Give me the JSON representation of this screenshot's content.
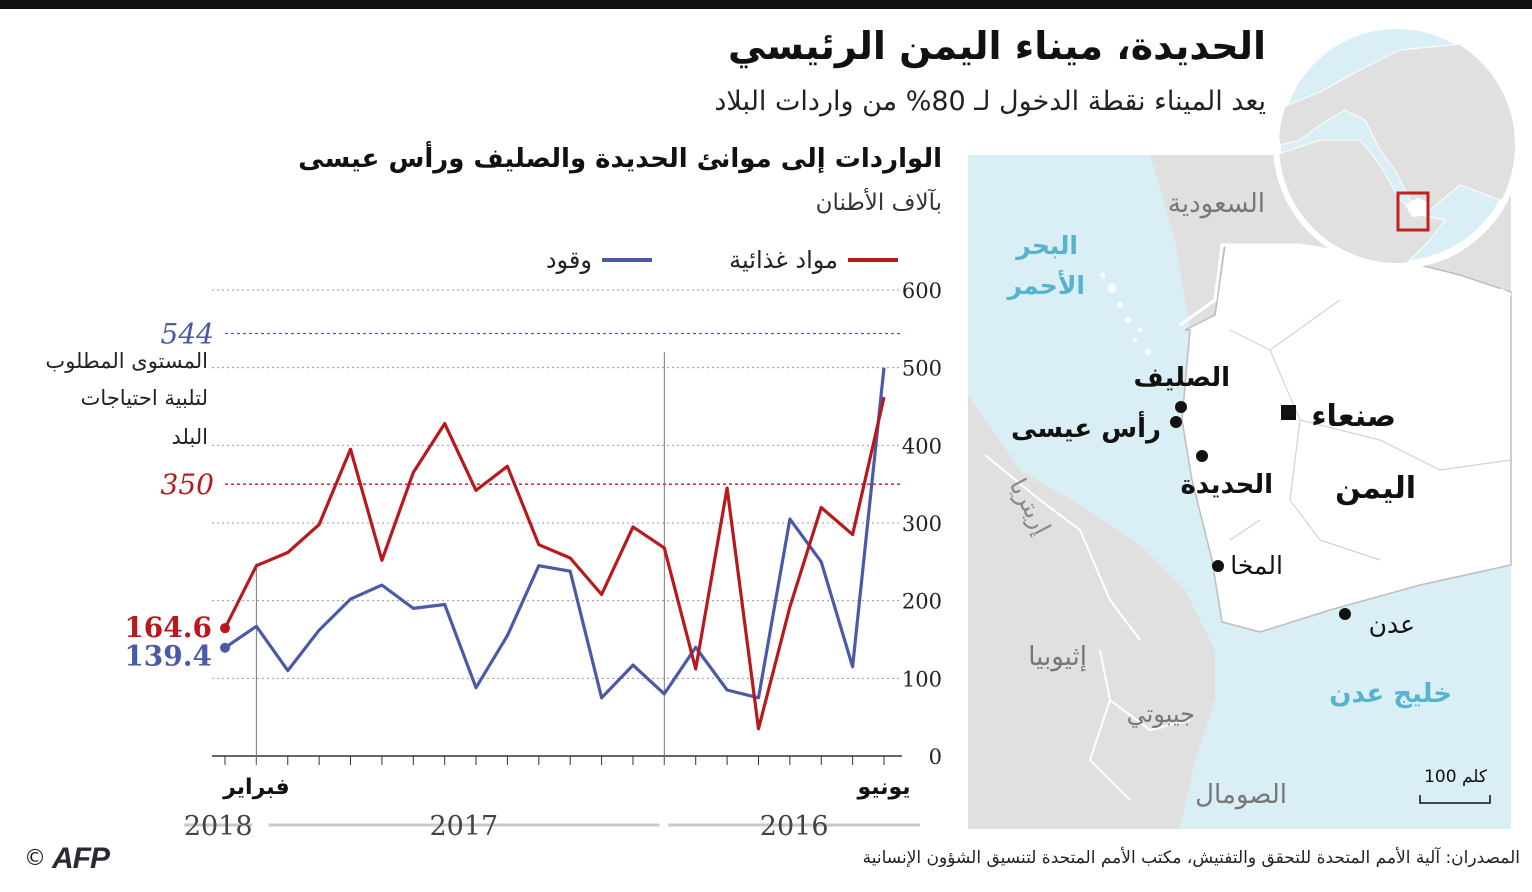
{
  "header": {
    "title": "الحديدة، ميناء اليمن الرئيسي",
    "subtitle": "يعد الميناء نقطة الدخول لـ 80% من واردات البلاد"
  },
  "chart_data": {
    "type": "line",
    "title": "الواردات إلى موانئ الحديدة والصليف ورأس عيسى",
    "unit_label": "بآلاف الأطنان",
    "ylim": [
      0,
      600
    ],
    "yticks": [
      0,
      100,
      200,
      300,
      400,
      500,
      600
    ],
    "ytick_labels": [
      "0",
      "100",
      "200",
      "300",
      "400",
      "500",
      "600"
    ],
    "x_direction": "right-to-left",
    "series": [
      {
        "name": "مواد غذائية",
        "color": "#b8191c",
        "values": [
          462,
          285,
          320,
          192,
          35,
          345,
          112,
          268,
          295,
          208,
          255,
          272,
          373,
          342,
          428,
          365,
          252,
          395,
          298,
          262,
          245,
          164.6
        ]
      },
      {
        "name": "وقود",
        "color": "#4a5aa8",
        "values": [
          500,
          115,
          250,
          305,
          75,
          85,
          140,
          80,
          117,
          75,
          238,
          245,
          155,
          88,
          195,
          190,
          220,
          202,
          162,
          110,
          167,
          139.4
        ]
      }
    ],
    "reference_lines": [
      {
        "value": 544,
        "label": "544",
        "color": "#4a5aa8",
        "note": "المستوى المطلوب لتلبية احتياجات البلد"
      },
      {
        "value": 350,
        "label": "350",
        "color": "#b8191c"
      }
    ],
    "end_labels": {
      "food": "164.6",
      "fuel": "139.4"
    },
    "x_labels": {
      "start": "يونيو",
      "feb": "فبراير"
    },
    "years": [
      "2016",
      "2017",
      "2018"
    ],
    "legend": {
      "food": "مواد غذائية",
      "fuel": "وقود"
    },
    "annotation_lines": [
      "المستوى المطلوب",
      "لتلبية احتياجات",
      "البلد"
    ]
  },
  "map": {
    "labels": {
      "saudi": "السعودية",
      "red_sea_1": "البحر",
      "red_sea_2": "الأحمر",
      "salif": "الصليف",
      "ras_isa": "رأس عيسى",
      "sanaa": "صنعاء",
      "hodeidah": "الحديدة",
      "yemen": "اليمن",
      "eritrea": "إريتريا",
      "mocha": "المخا",
      "aden": "عدن",
      "ethiopia": "إثيوبيا",
      "gulf_aden": "خليج عدن",
      "djibouti": "جيبوتي",
      "somalia": "الصومال",
      "scale": "100 كلم"
    },
    "colors": {
      "sea": "#d9eef5",
      "land": "#e0e0e0",
      "highlight": "#ffffff",
      "locator": "#c0201e"
    }
  },
  "footer": {
    "source": "المصدران: آلية الأمم المتحدة للتحقق والتفتيش، مكتب الأمم المتحدة لتنسيق الشؤون الإنسانية",
    "logo": "AFP",
    "copyright": "©"
  }
}
